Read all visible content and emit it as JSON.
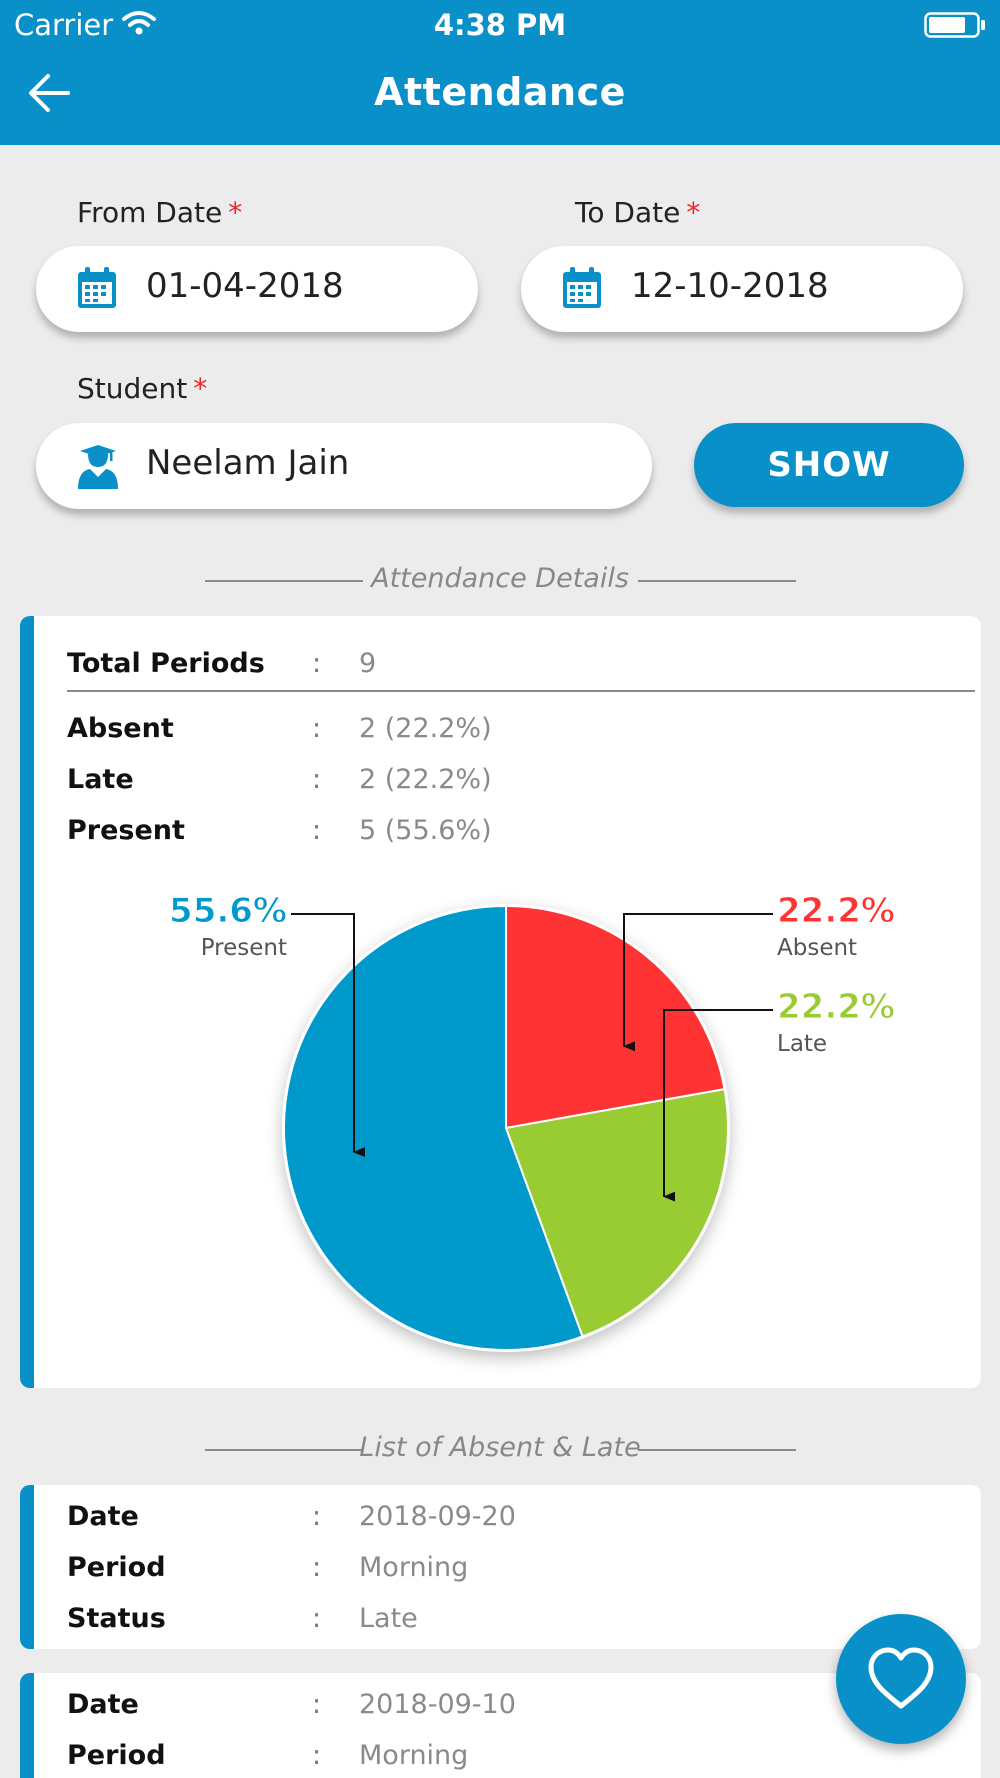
{
  "status_bar": {
    "carrier": "Carrier",
    "time": "4:38 PM"
  },
  "header": {
    "title": "Attendance"
  },
  "filters": {
    "from_date": {
      "label": "From Date",
      "required_mark": "*",
      "value": "01-04-2018"
    },
    "to_date": {
      "label": "To Date",
      "required_mark": "*",
      "value": "12-10-2018"
    },
    "student": {
      "label": "Student",
      "required_mark": "*",
      "value": "Neelam Jain"
    },
    "show_label": "SHOW"
  },
  "details": {
    "section_title": "Attendance Details",
    "separator": ":",
    "total": {
      "label": "Total Periods",
      "value": "9"
    },
    "rows": [
      {
        "label": "Absent",
        "value": "2 (22.2%)"
      },
      {
        "label": "Late",
        "value": "2 (22.2%)"
      },
      {
        "label": "Present",
        "value": "5 (55.6%)"
      }
    ]
  },
  "chart_data": {
    "type": "pie",
    "slices": [
      {
        "name": "Absent",
        "label": "22.2%",
        "value": 22.2,
        "color": "#ff3333"
      },
      {
        "name": "Late",
        "label": "22.2%",
        "value": 22.2,
        "color": "#99cc33"
      },
      {
        "name": "Present",
        "label": "55.6%",
        "value": 55.6,
        "color": "#0099cc"
      }
    ]
  },
  "list": {
    "section_title": "List of Absent & Late",
    "separator": ":",
    "items": [
      {
        "date_label": "Date",
        "date": "2018-09-20",
        "period_label": "Period",
        "period": "Morning",
        "status_label": "Status",
        "status": "Late"
      },
      {
        "date_label": "Date",
        "date": "2018-09-10",
        "period_label": "Period",
        "period": "Morning"
      }
    ]
  },
  "colors": {
    "brand": "#0a90c8",
    "required": "#e8262b"
  },
  "icons": {
    "back": "arrow-left-icon",
    "calendar": "calendar-icon",
    "student": "graduate-icon",
    "fab": "heart-icon"
  }
}
